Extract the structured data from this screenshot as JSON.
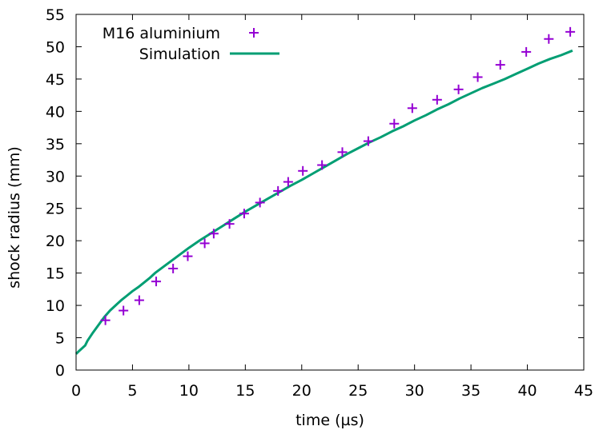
{
  "chart_data": {
    "type": "scatter",
    "title": "",
    "xlabel": "time (µs)",
    "ylabel": "shock radius (mm)",
    "xlim": [
      0,
      45
    ],
    "ylim": [
      0,
      55
    ],
    "xticks": [
      "0",
      "5",
      "10",
      "15",
      "20",
      "25",
      "30",
      "35",
      "40",
      "45"
    ],
    "yticks": [
      "0",
      "5",
      "10",
      "15",
      "20",
      "25",
      "30",
      "35",
      "40",
      "45",
      "50",
      "55"
    ],
    "grid": false,
    "legend_position": "top-left",
    "colors": {
      "measured": "#9400d3",
      "simulation": "#009e73"
    },
    "series": [
      {
        "name": "M16 aluminium",
        "type": "scatter",
        "marker": "plus",
        "x": [
          2.6,
          4.2,
          5.6,
          7.1,
          8.6,
          9.9,
          11.4,
          12.2,
          13.6,
          14.9,
          16.3,
          17.9,
          18.8,
          20.1,
          21.8,
          23.6,
          25.9,
          28.2,
          29.8,
          32.0,
          33.9,
          35.6,
          37.6,
          39.9,
          41.9,
          43.8
        ],
        "y": [
          7.7,
          9.2,
          10.8,
          13.7,
          15.7,
          17.6,
          19.6,
          21.1,
          22.6,
          24.2,
          25.9,
          27.7,
          29.1,
          30.8,
          31.7,
          33.7,
          35.4,
          38.1,
          40.5,
          41.8,
          43.4,
          45.3,
          47.2,
          49.2,
          51.2,
          52.3
        ]
      },
      {
        "name": "Simulation",
        "type": "line",
        "x": [
          0,
          0.3,
          0.8,
          1.0,
          1.5,
          2.0,
          2.5,
          3.0,
          3.5,
          4.0,
          4.5,
          5.0,
          5.5,
          6.0,
          6.5,
          7.0,
          8.0,
          9.0,
          10.0,
          11.0,
          12.0,
          13.0,
          14.0,
          15.0,
          16.0,
          17.0,
          18.0,
          19.0,
          20.0,
          21.0,
          22.0,
          23.0,
          24.0,
          25.0,
          26.0,
          27.0,
          28.0,
          29.0,
          30.0,
          31.0,
          32.0,
          33.0,
          34.0,
          35.0,
          36.0,
          37.0,
          38.0,
          39.0,
          40.0,
          41.0,
          42.0,
          43.0,
          44.0
        ],
        "y": [
          2.5,
          3.0,
          3.8,
          4.5,
          5.8,
          7.0,
          8.2,
          9.2,
          10.0,
          10.8,
          11.5,
          12.2,
          12.8,
          13.5,
          14.2,
          15.0,
          16.3,
          17.6,
          18.9,
          20.1,
          21.2,
          22.3,
          23.4,
          24.5,
          25.5,
          26.5,
          27.5,
          28.5,
          29.4,
          30.4,
          31.4,
          32.4,
          33.4,
          34.3,
          35.2,
          36.0,
          36.9,
          37.7,
          38.6,
          39.4,
          40.3,
          41.1,
          42.0,
          42.8,
          43.6,
          44.3,
          45.0,
          45.8,
          46.6,
          47.4,
          48.1,
          48.7,
          49.4
        ]
      }
    ]
  }
}
